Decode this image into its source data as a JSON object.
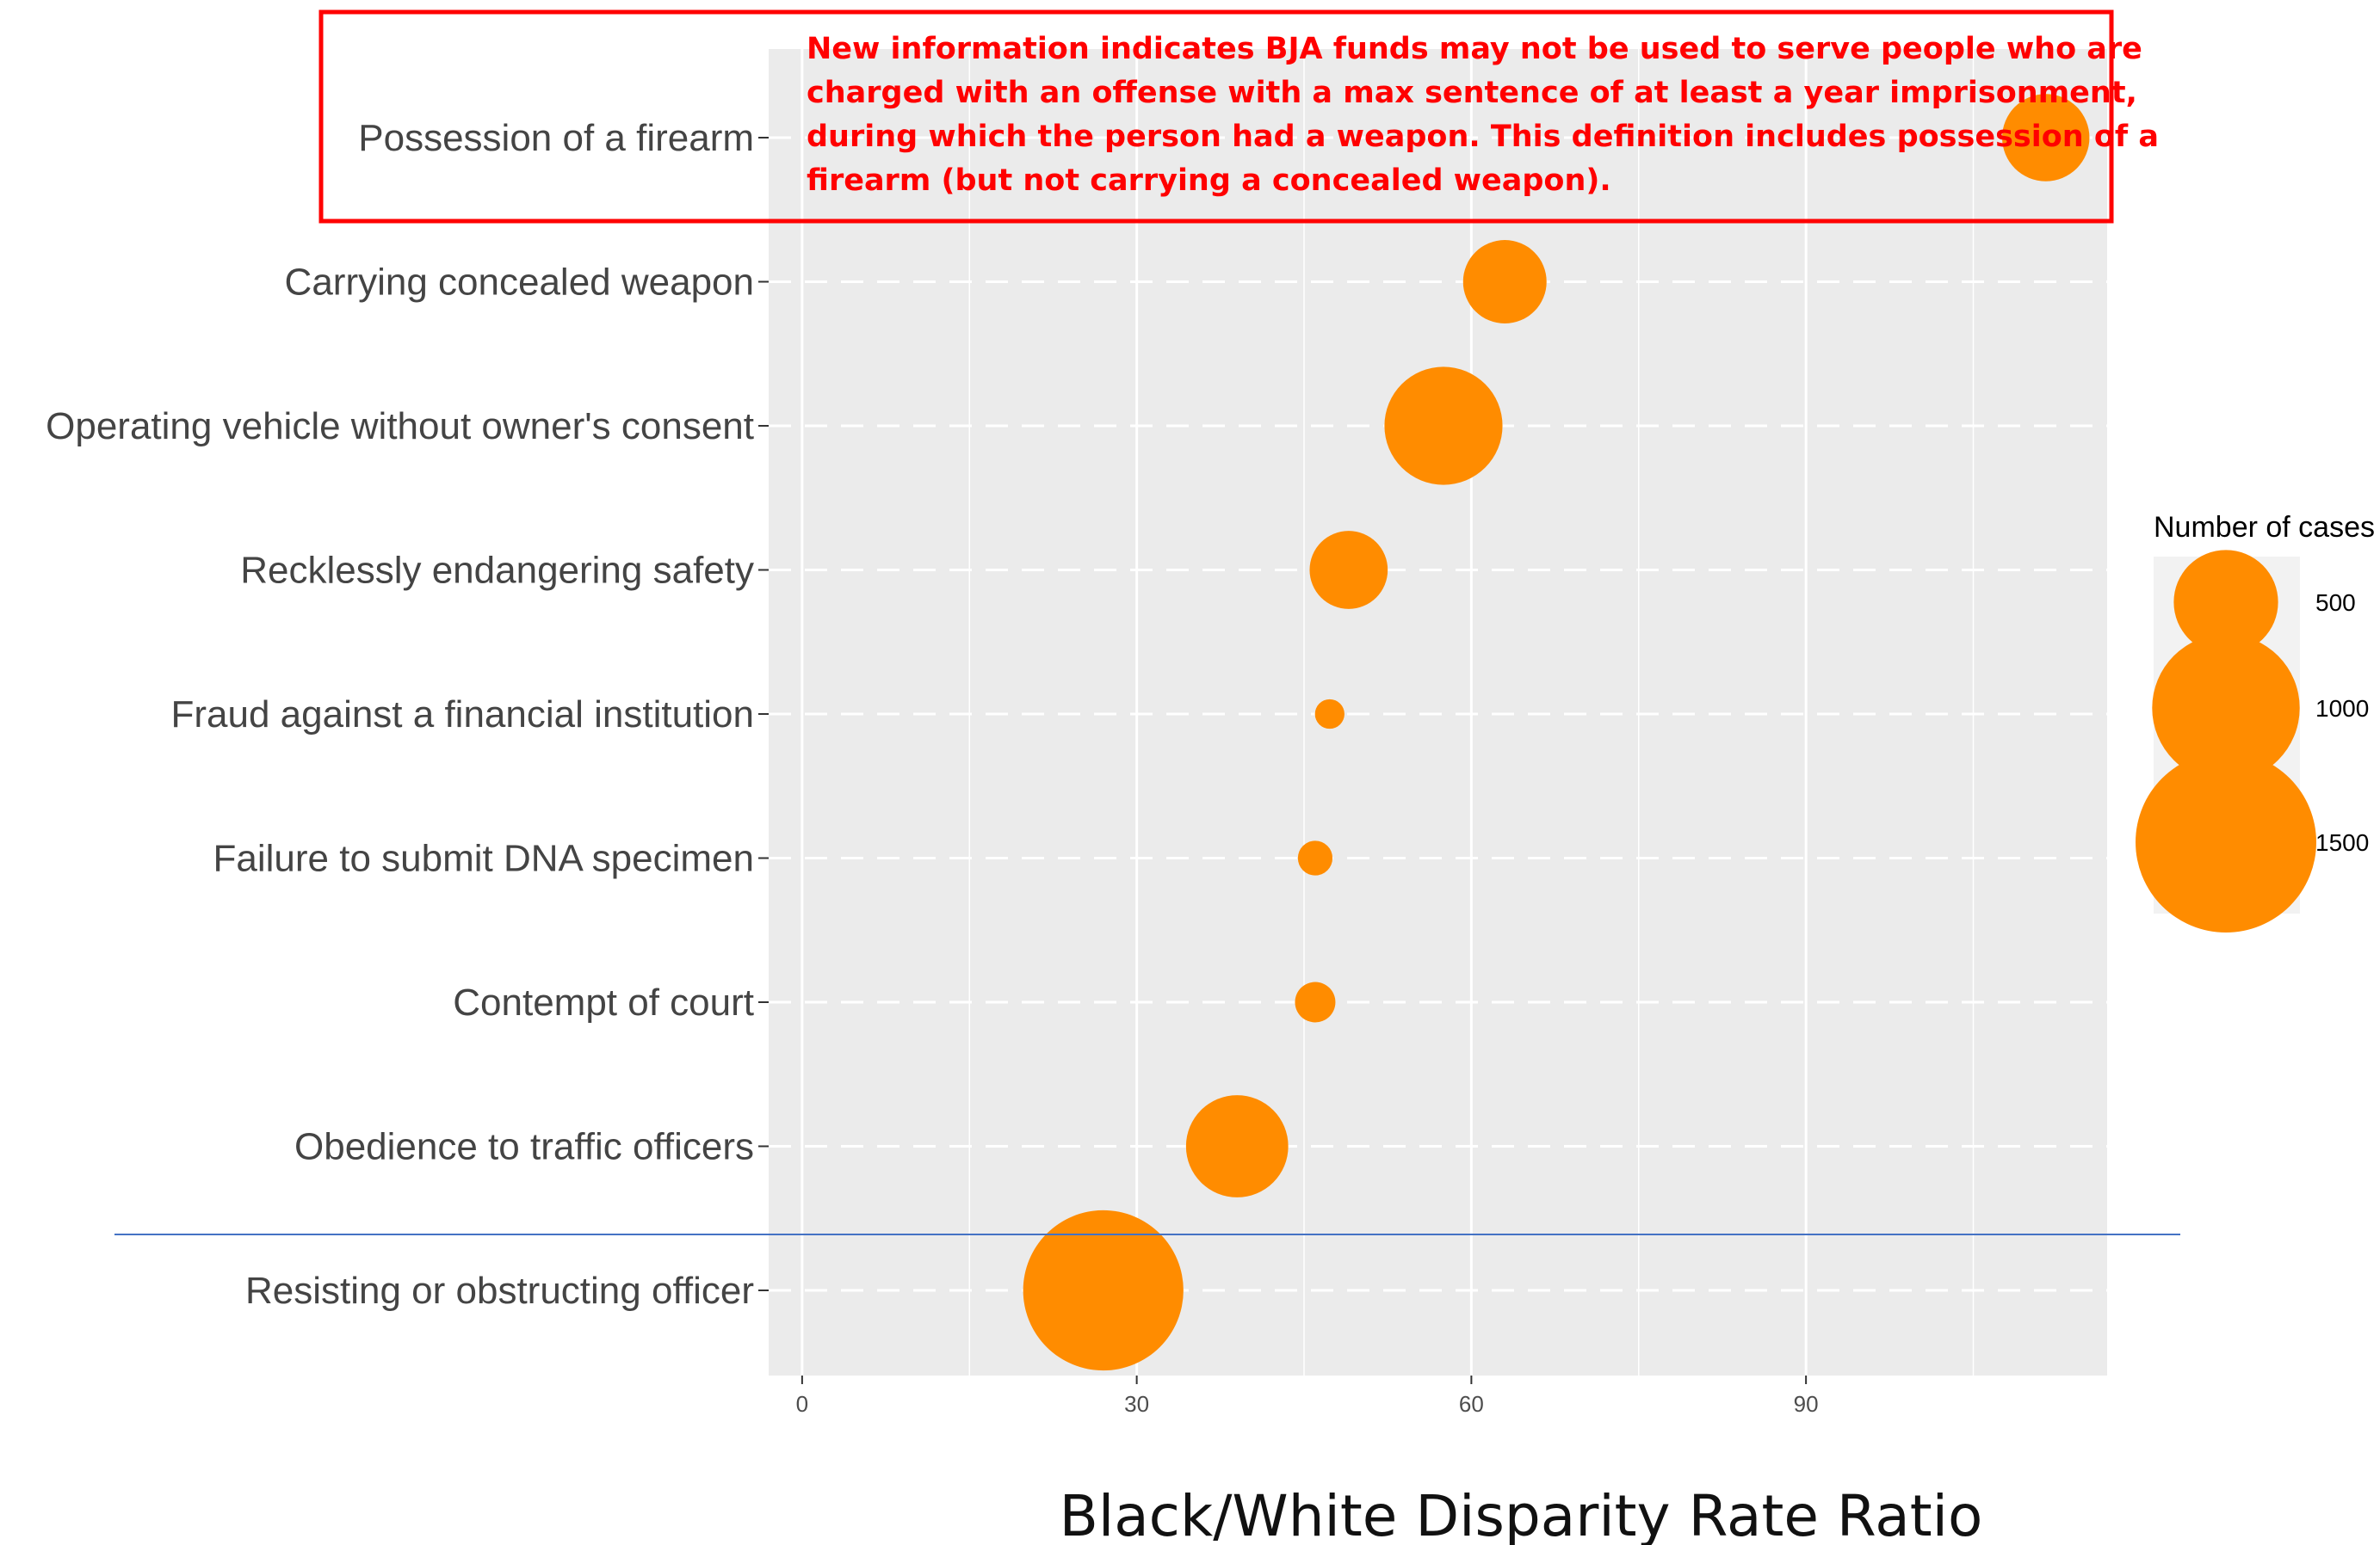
{
  "chart_data": {
    "type": "scatter",
    "title": "",
    "xlabel": "Black/White Disparity Rate Ratio",
    "ylabel": "",
    "xlim": [
      -3,
      117
    ],
    "xticks": [
      0,
      30,
      60,
      90
    ],
    "categories": [
      "Possession of a firearm",
      "Carrying concealed weapon",
      "Operating vehicle without owner's consent",
      "Recklessly endangering safety",
      "Fraud against a financial institution",
      "Failure to submit DNA specimen",
      "Contempt of court",
      "Obedience to traffic officers",
      "Resisting or obstructing officer"
    ],
    "series": [
      {
        "points": [
          {
            "category": "Possession of a firearm",
            "x": 111.5,
            "cases": 350
          },
          {
            "category": "Carrying concealed weapon",
            "x": 63,
            "cases": 320
          },
          {
            "category": "Operating vehicle without owner's consent",
            "x": 57.5,
            "cases": 640
          },
          {
            "category": "Recklessly endangering safety",
            "x": 49,
            "cases": 280
          },
          {
            "category": "Fraud against a financial institution",
            "x": 47.3,
            "cases": 40
          },
          {
            "category": "Failure to submit DNA specimen",
            "x": 46,
            "cases": 55
          },
          {
            "category": "Contempt of court",
            "x": 46,
            "cases": 75
          },
          {
            "category": "Obedience to traffic officers",
            "x": 39,
            "cases": 480
          },
          {
            "category": "Resisting or obstructing officer",
            "x": 27,
            "cases": 1180
          }
        ]
      }
    ],
    "legend": {
      "title": "Number of cases",
      "entries": [
        500,
        1000,
        1500
      ],
      "labels": [
        "500",
        "1000",
        "1500"
      ],
      "placement": "right"
    },
    "grid": true,
    "colors": {
      "point": "#ff8c00",
      "panel": "#ebebeb",
      "grid": "#ffffff",
      "annotation": "#ff0000",
      "divider": "#4472c4"
    }
  },
  "annotation": {
    "lines": [
      "New information indicates BJA funds may not be used to serve people who are",
      "charged with an offense with a max sentence of at least a year imprisonment,",
      "during which the person had a weapon. This definition includes possession of a",
      "firearm (but not carrying a concealed weapon)."
    ]
  }
}
